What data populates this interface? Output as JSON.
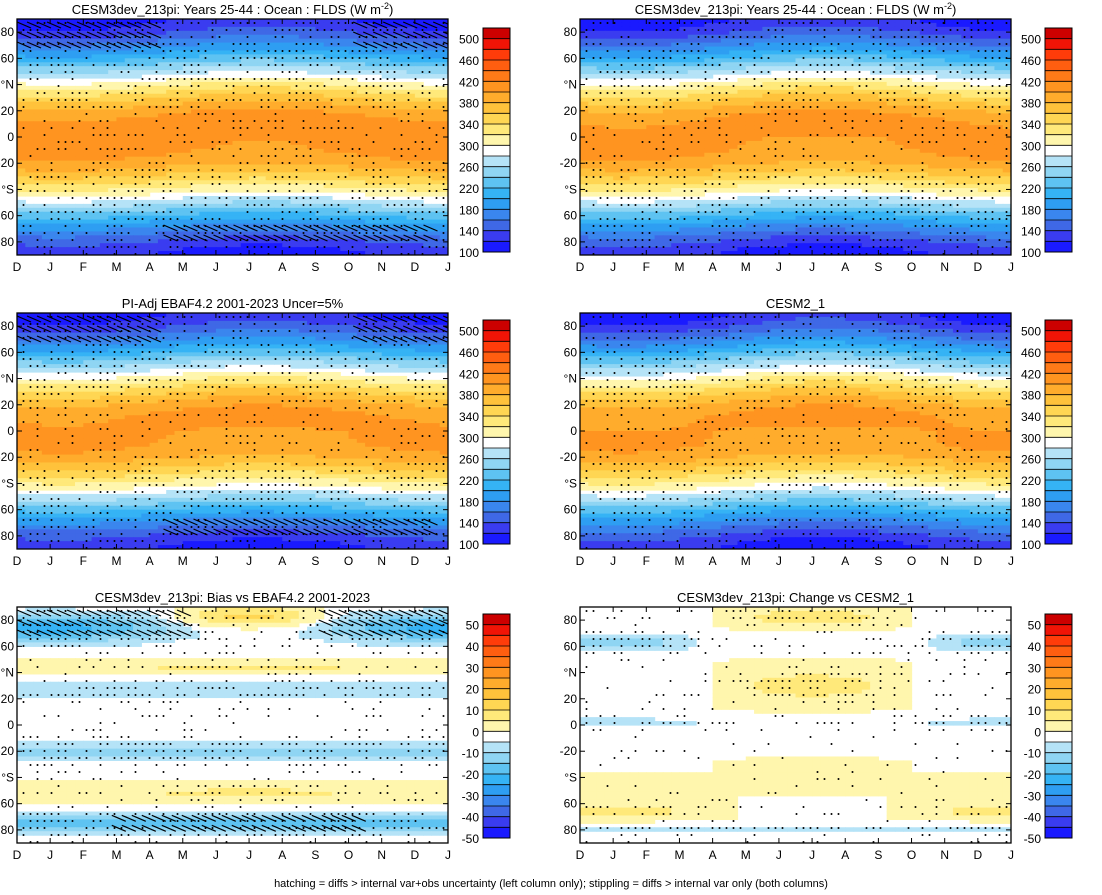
{
  "footer": "hatching = diffs > internal var+obs uncertainty (left column only); stippling = diffs > internal var only (both columns)",
  "colors": {
    "white": "#ffffff",
    "abs_scale": [
      "#1a1aff",
      "#3a3cf0",
      "#3f68e6",
      "#3a86ee",
      "#2e9ef2",
      "#35b3f5",
      "#5ec3f2",
      "#8fd5f3",
      "#b5e3f7",
      "#ffffff",
      "#fff6ad",
      "#ffe97a",
      "#ffd653",
      "#ffc23b",
      "#ffac2c",
      "#ff9420",
      "#ff7a18",
      "#ff5e10",
      "#ff3c0a",
      "#f01406",
      "#cc0000"
    ],
    "bias_scale": [
      "#1a1aff",
      "#3a3cf0",
      "#3f68e6",
      "#3a86ee",
      "#2e9ef2",
      "#35b3f5",
      "#5ec3f2",
      "#8fd5f3",
      "#b5e3f7",
      "#ffffff",
      "#fff6ad",
      "#ffe97a",
      "#ffd653",
      "#ffc23b",
      "#ffac2c",
      "#ff9420",
      "#ff7a18",
      "#ff5e10",
      "#ff3c0a",
      "#f01406",
      "#cc0000"
    ]
  },
  "chart_data": [
    {
      "type": "heatmap",
      "id": "abs1",
      "title": "CESM3dev_213pi: Years 25-44 : Ocean : FLDS (W m",
      "title_sup": "-2",
      "title_end": ")",
      "x_ticks": [
        "D",
        "J",
        "F",
        "M",
        "A",
        "M",
        "J",
        "J",
        "A",
        "S",
        "O",
        "N",
        "D",
        "J"
      ],
      "y_ticks": [
        "80",
        "60",
        "°N",
        "20",
        "0",
        "-20",
        "°S",
        "60",
        "80"
      ],
      "ylim": [
        -90,
        90
      ],
      "colorbar_labels": [
        "500",
        "460",
        "420",
        "380",
        "340",
        "300",
        "260",
        "220",
        "180",
        "140",
        "100"
      ],
      "levels": [
        100,
        120,
        140,
        160,
        180,
        200,
        220,
        240,
        260,
        280,
        300,
        320,
        340,
        360,
        380,
        400,
        420,
        440,
        460,
        480,
        500
      ],
      "field": {
        "peak": 415,
        "amp": 14,
        "hatched": true
      }
    },
    {
      "type": "heatmap",
      "id": "abs2",
      "title": "CESM3dev_213pi: Years 25-44 : Ocean : FLDS (W m",
      "title_sup": "-2",
      "title_end": ")",
      "x_ticks": [
        "D",
        "J",
        "F",
        "M",
        "A",
        "M",
        "J",
        "J",
        "A",
        "S",
        "O",
        "N",
        "D",
        "J"
      ],
      "y_ticks": [
        "80",
        "60",
        "°N",
        "20",
        "0",
        "-20",
        "°S",
        "60",
        "80"
      ],
      "ylim": [
        -90,
        90
      ],
      "colorbar_labels": [
        "500",
        "460",
        "420",
        "380",
        "340",
        "300",
        "260",
        "220",
        "180",
        "140",
        "100"
      ],
      "levels": [
        100,
        120,
        140,
        160,
        180,
        200,
        220,
        240,
        260,
        280,
        300,
        320,
        340,
        360,
        380,
        400,
        420,
        440,
        460,
        480,
        500
      ],
      "field": {
        "peak": 412,
        "amp": 16,
        "hatched": false
      }
    },
    {
      "type": "heatmap",
      "id": "abs3",
      "title": "PI-Adj EBAF4.2 2001-2023 Uncer=5%",
      "title_sup": "",
      "title_end": "",
      "x_ticks": [
        "D",
        "J",
        "F",
        "M",
        "A",
        "M",
        "J",
        "J",
        "A",
        "S",
        "O",
        "N",
        "D",
        "J"
      ],
      "y_ticks": [
        "80",
        "60",
        "°N",
        "20",
        "0",
        "-20",
        "°S",
        "60",
        "80"
      ],
      "ylim": [
        -90,
        90
      ],
      "colorbar_labels": [
        "500",
        "460",
        "420",
        "380",
        "340",
        "300",
        "260",
        "220",
        "180",
        "140",
        "100"
      ],
      "levels": [
        100,
        120,
        140,
        160,
        180,
        200,
        220,
        240,
        260,
        280,
        300,
        320,
        340,
        360,
        380,
        400,
        420,
        440,
        460,
        480,
        500
      ],
      "field": {
        "peak": 410,
        "amp": 14,
        "hatched": true
      }
    },
    {
      "type": "heatmap",
      "id": "abs4",
      "title": "CESM2_1",
      "title_sup": "",
      "title_end": "",
      "x_ticks": [
        "D",
        "J",
        "F",
        "M",
        "A",
        "M",
        "J",
        "J",
        "A",
        "S",
        "O",
        "N",
        "D",
        "J"
      ],
      "y_ticks": [
        "80",
        "60",
        "°N",
        "20",
        "0",
        "-20",
        "°S",
        "60",
        "80"
      ],
      "ylim": [
        -90,
        90
      ],
      "colorbar_labels": [
        "500",
        "460",
        "420",
        "380",
        "340",
        "300",
        "260",
        "220",
        "180",
        "140",
        "100"
      ],
      "levels": [
        100,
        120,
        140,
        160,
        180,
        200,
        220,
        240,
        260,
        280,
        300,
        320,
        340,
        360,
        380,
        400,
        420,
        440,
        460,
        480,
        500
      ],
      "field": {
        "peak": 408,
        "amp": 18,
        "hatched": false
      }
    },
    {
      "type": "heatmap",
      "id": "bias1",
      "title": "CESM3dev_213pi: Bias vs EBAF4.2 2001-2023",
      "title_sup": "",
      "title_end": "",
      "x_ticks": [
        "D",
        "J",
        "F",
        "M",
        "A",
        "M",
        "J",
        "J",
        "A",
        "S",
        "O",
        "N",
        "D",
        "J"
      ],
      "y_ticks": [
        "80",
        "60",
        "°N",
        "20",
        "0",
        "-20",
        "°S",
        "60",
        "80"
      ],
      "ylim": [
        -90,
        90
      ],
      "colorbar_labels": [
        "50",
        "40",
        "30",
        "20",
        "10",
        "0",
        "-10",
        "-20",
        "-30",
        "-40",
        "-50"
      ],
      "levels": [
        -50,
        -45,
        -40,
        -35,
        -30,
        -25,
        -20,
        -15,
        -10,
        -5,
        0,
        5,
        10,
        15,
        20,
        25,
        30,
        35,
        40,
        45,
        50
      ],
      "field": {
        "hatched": true
      }
    },
    {
      "type": "heatmap",
      "id": "bias2",
      "title": "CESM3dev_213pi: Change vs CESM2_1",
      "title_sup": "",
      "title_end": "",
      "x_ticks": [
        "D",
        "J",
        "F",
        "M",
        "A",
        "M",
        "J",
        "J",
        "A",
        "S",
        "O",
        "N",
        "D",
        "J"
      ],
      "y_ticks": [
        "80",
        "60",
        "°N",
        "20",
        "0",
        "-20",
        "°S",
        "60",
        "80"
      ],
      "ylim": [
        -90,
        90
      ],
      "colorbar_labels": [
        "50",
        "40",
        "30",
        "20",
        "10",
        "0",
        "-10",
        "-20",
        "-30",
        "-40",
        "-50"
      ],
      "levels": [
        -50,
        -45,
        -40,
        -35,
        -30,
        -25,
        -20,
        -15,
        -10,
        -5,
        0,
        5,
        10,
        15,
        20,
        25,
        30,
        35,
        40,
        45,
        50
      ],
      "field": {
        "hatched": false
      }
    }
  ]
}
